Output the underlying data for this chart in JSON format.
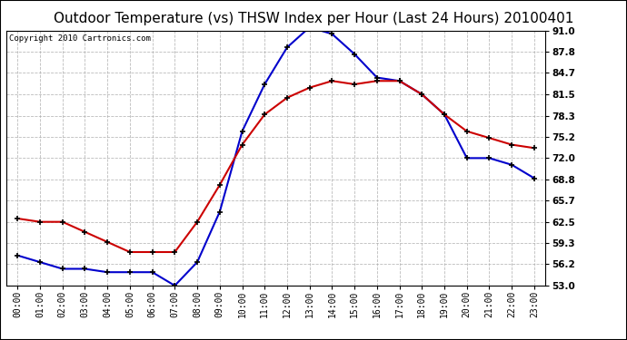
{
  "title": "Outdoor Temperature (vs) THSW Index per Hour (Last 24 Hours) 20100401",
  "copyright": "Copyright 2010 Cartronics.com",
  "hours": [
    "00:00",
    "01:00",
    "02:00",
    "03:00",
    "04:00",
    "05:00",
    "06:00",
    "07:00",
    "08:00",
    "09:00",
    "10:00",
    "11:00",
    "12:00",
    "13:00",
    "14:00",
    "15:00",
    "16:00",
    "17:00",
    "18:00",
    "19:00",
    "20:00",
    "21:00",
    "22:00",
    "23:00"
  ],
  "temp": [
    63.0,
    62.5,
    62.5,
    61.0,
    59.5,
    58.0,
    58.0,
    58.0,
    62.5,
    68.0,
    74.0,
    78.5,
    81.0,
    82.5,
    83.5,
    83.0,
    83.5,
    83.5,
    81.5,
    78.5,
    76.0,
    75.0,
    74.0,
    73.5
  ],
  "thsw": [
    57.5,
    56.5,
    55.5,
    55.5,
    55.0,
    55.0,
    55.0,
    53.0,
    56.5,
    64.0,
    76.0,
    83.0,
    88.5,
    91.5,
    90.5,
    87.5,
    84.0,
    83.5,
    81.5,
    78.5,
    72.0,
    72.0,
    71.0,
    69.0
  ],
  "ylim": [
    53.0,
    91.0
  ],
  "yticks": [
    53.0,
    56.2,
    59.3,
    62.5,
    65.7,
    68.8,
    72.0,
    75.2,
    78.3,
    81.5,
    84.7,
    87.8,
    91.0
  ],
  "temp_color": "#cc0000",
  "thsw_color": "#0000cc",
  "bg_color": "#ffffff",
  "grid_color": "#aaaaaa",
  "title_fontsize": 11,
  "copyright_fontsize": 6.5
}
